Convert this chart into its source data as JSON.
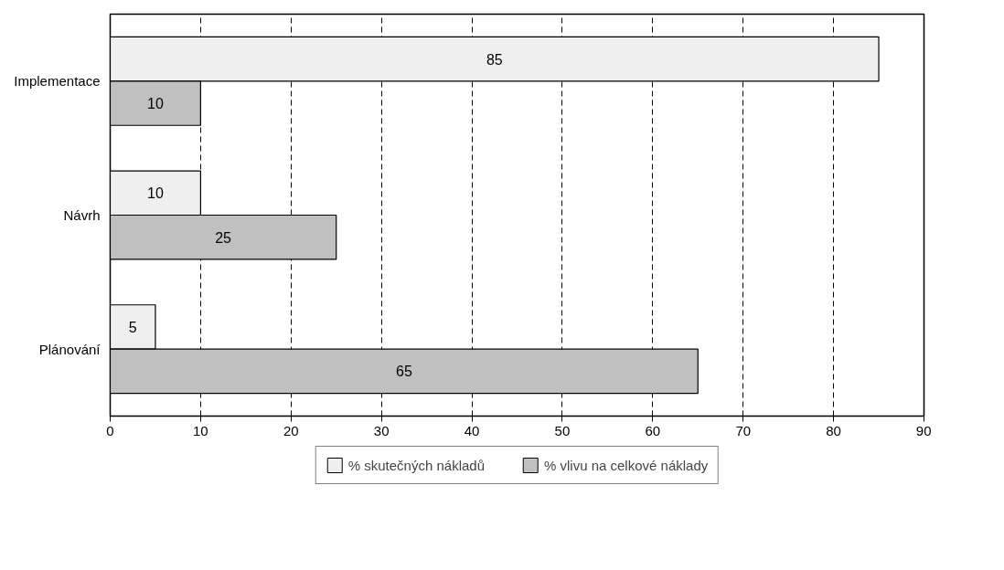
{
  "chart_data": {
    "type": "bar",
    "orientation": "horizontal",
    "categories": [
      "Implementace",
      "Návrh",
      "Plánování"
    ],
    "series": [
      {
        "name": "% skutečných nákladů",
        "color": "#efefef",
        "values": [
          85,
          10,
          5
        ]
      },
      {
        "name": "% vlivu na celkové náklady",
        "color": "#c0c0c0",
        "values": [
          10,
          25,
          65
        ]
      }
    ],
    "xlim": [
      0,
      90
    ],
    "xticks": [
      0,
      10,
      20,
      30,
      40,
      50,
      60,
      70,
      80,
      90
    ],
    "grid": "x",
    "line_style": "dashed",
    "legend": "bottom",
    "data_labels": true
  }
}
